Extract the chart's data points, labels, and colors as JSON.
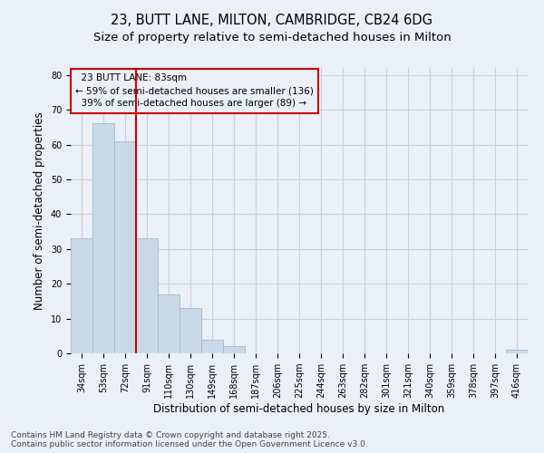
{
  "title_line1": "23, BUTT LANE, MILTON, CAMBRIDGE, CB24 6DG",
  "title_line2": "Size of property relative to semi-detached houses in Milton",
  "xlabel": "Distribution of semi-detached houses by size in Milton",
  "ylabel": "Number of semi-detached properties",
  "categories": [
    "34sqm",
    "53sqm",
    "72sqm",
    "91sqm",
    "110sqm",
    "130sqm",
    "149sqm",
    "168sqm",
    "187sqm",
    "206sqm",
    "225sqm",
    "244sqm",
    "263sqm",
    "282sqm",
    "301sqm",
    "321sqm",
    "340sqm",
    "359sqm",
    "378sqm",
    "397sqm",
    "416sqm"
  ],
  "values": [
    33,
    66,
    61,
    33,
    17,
    13,
    4,
    2,
    0,
    0,
    0,
    0,
    0,
    0,
    0,
    0,
    0,
    0,
    0,
    0,
    1
  ],
  "bar_color": "#c9d9e8",
  "bar_edge_color": "#a0b8cc",
  "grid_color": "#c8cfe0",
  "background_color": "#eaeff8",
  "vline_x": 2.5,
  "vline_color": "#cc0000",
  "annotation_title": "23 BUTT LANE: 83sqm",
  "annotation_line1": "← 59% of semi-detached houses are smaller (136)",
  "annotation_line2": "39% of semi-detached houses are larger (89) →",
  "annotation_box_color": "#cc0000",
  "ylim": [
    0,
    82
  ],
  "yticks": [
    0,
    10,
    20,
    30,
    40,
    50,
    60,
    70,
    80
  ],
  "footer_line1": "Contains HM Land Registry data © Crown copyright and database right 2025.",
  "footer_line2": "Contains public sector information licensed under the Open Government Licence v3.0.",
  "title_fontsize": 10.5,
  "subtitle_fontsize": 9.5,
  "axis_label_fontsize": 8.5,
  "tick_fontsize": 7,
  "annotation_fontsize": 7.5,
  "footer_fontsize": 6.5
}
